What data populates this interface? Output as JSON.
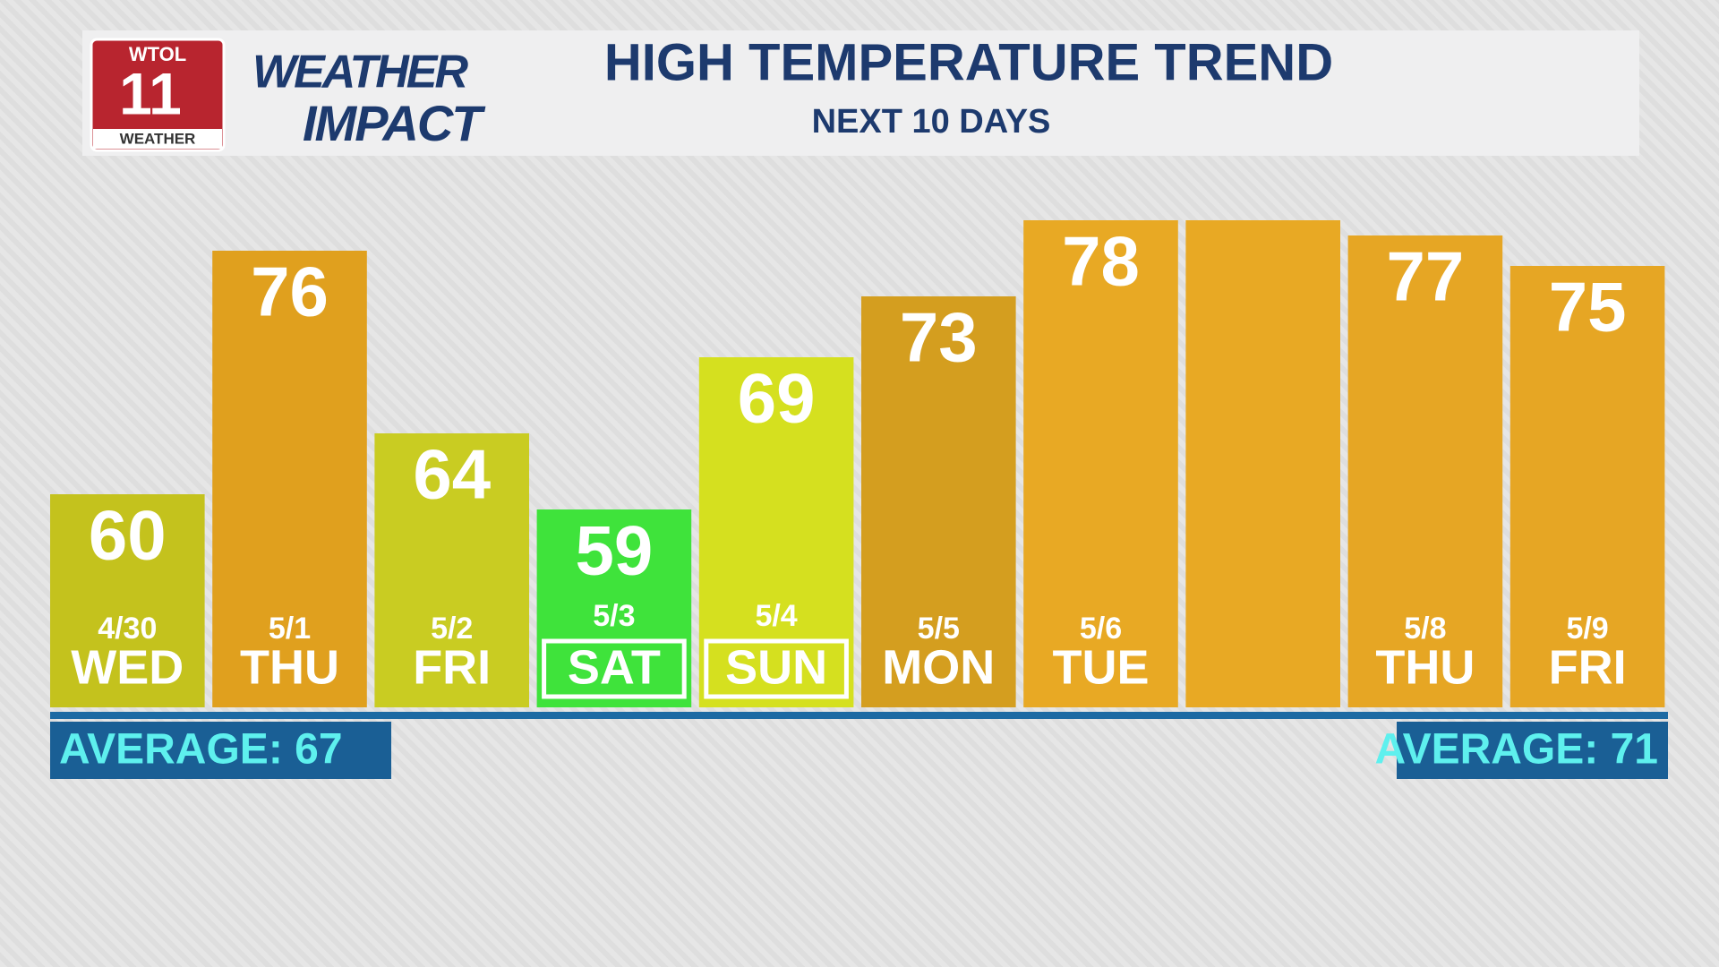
{
  "chart_data": {
    "type": "bar",
    "title": "HIGH TEMPERATURE TREND",
    "subtitle": "NEXT 10 DAYS",
    "logo": {
      "station": "WTOL",
      "channel": "11",
      "tag": "WEATHER"
    },
    "brand": {
      "line1": "WEATHER",
      "line2": "IMPACT"
    },
    "dates": [
      "4/30",
      "5/1",
      "5/2",
      "5/3",
      "5/4",
      "5/5",
      "5/6",
      null,
      "5/8",
      "5/9"
    ],
    "categories": [
      "WED",
      "THU",
      "FRI",
      "SAT",
      "SUN",
      "MON",
      "TUE",
      null,
      "THU",
      "FRI"
    ],
    "values": [
      60,
      76,
      64,
      59,
      69,
      73,
      78,
      78,
      77,
      75
    ],
    "value_labels": [
      "60",
      "76",
      "64",
      "59",
      "69",
      "73",
      "78",
      null,
      "77",
      "75"
    ],
    "colors": [
      "#c4c21d",
      "#e0a01e",
      "#c9cc22",
      "#3fe33b",
      "#d5e01f",
      "#d49e1f",
      "#e8a924",
      "#e8a924",
      "#e6a624",
      "#e6a624"
    ],
    "label_box": [
      false,
      false,
      false,
      true,
      true,
      false,
      false,
      false,
      false,
      false
    ],
    "ylim": [
      46,
      80
    ],
    "averages": [
      "AVERAGE: 67",
      "AVERAGE: 71"
    ]
  }
}
